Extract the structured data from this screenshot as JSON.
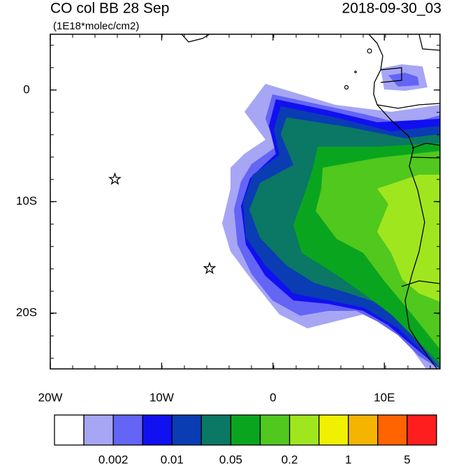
{
  "chart_data": {
    "type": "map",
    "title": "CO col BB 28 Sep",
    "subtitle": "(1E18*molec/cm2)",
    "date": "2018-09-30_03",
    "xlim": [
      -20,
      15
    ],
    "ylim": [
      -25,
      5
    ],
    "xticks": [
      {
        "value": -20,
        "label": "20W"
      },
      {
        "value": -10,
        "label": "10W"
      },
      0,
      {
        "value": 10,
        "label": "10E"
      }
    ],
    "yticks": [
      0,
      {
        "value": -10,
        "label": "10S"
      },
      {
        "value": -20,
        "label": "20S"
      }
    ],
    "markers": [
      {
        "lon": -14.2,
        "lat": -8
      },
      {
        "lon": -5.7,
        "lat": -16
      }
    ],
    "colorbar": {
      "colors": [
        "#ffffff",
        "#a6a6f5",
        "#6464f5",
        "#1010f0",
        "#0a3cb4",
        "#0a7864",
        "#0aa51e",
        "#50c81e",
        "#a0e61e",
        "#f0f000",
        "#f5b400",
        "#ff6400",
        "#ff1e1e"
      ],
      "labels": [
        0.002,
        0.01,
        0.05,
        0.2,
        1,
        5
      ]
    }
  }
}
